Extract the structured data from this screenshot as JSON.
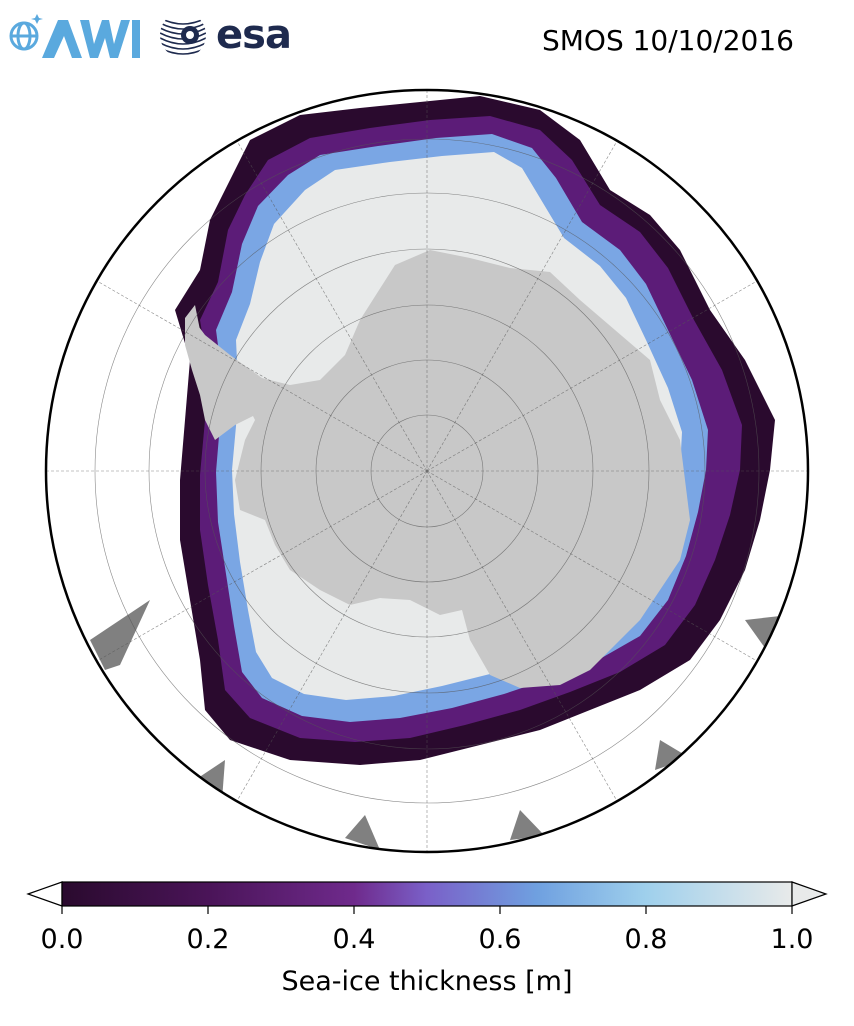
{
  "header": {
    "title": "SMOS 10/10/2016",
    "logos": [
      {
        "name": "awi-logo",
        "text": "AWI",
        "color": "#5aa9de"
      },
      {
        "name": "esa-logo",
        "text": "esa",
        "color": "#1e2a4e"
      }
    ]
  },
  "map": {
    "projection": "south polar stereographic",
    "land_color": "#c8c8c8",
    "no_data_color": "#808080",
    "grid": true,
    "colormap": [
      "#2a0a2e",
      "#4a1458",
      "#6f2a8c",
      "#7a60c8",
      "#6fa0e0",
      "#9fd0ec",
      "#e8eaea"
    ]
  },
  "colorbar": {
    "label": "Sea-ice thickness [m]",
    "min": 0.0,
    "max": 1.0,
    "ticks": [
      "0.0",
      "0.2",
      "0.4",
      "0.6",
      "0.8",
      "1.0"
    ],
    "tick_values": [
      0.0,
      0.2,
      0.4,
      0.6,
      0.8,
      1.0
    ],
    "extend": "both"
  }
}
